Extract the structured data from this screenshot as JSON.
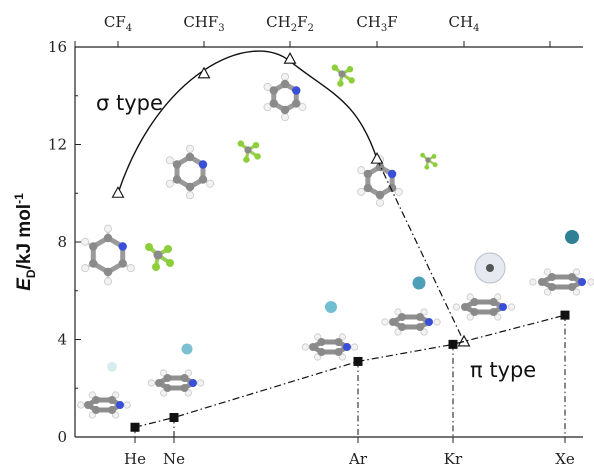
{
  "chart_data": {
    "type": "line",
    "ylabel": {
      "main": "E",
      "sub": "D",
      "unit": "/kJ mol",
      "sup": "-1"
    },
    "ylim": [
      0,
      16
    ],
    "yticks": [
      "0",
      "4",
      "8",
      "12",
      "16"
    ],
    "bottom_axis": {
      "categories": [
        "He",
        "Ne",
        "Ar",
        "Kr",
        "Xe"
      ]
    },
    "top_axis": {
      "categories": [
        "CF4",
        "CHF3",
        "CH2F2",
        "CH3F",
        "CH4"
      ],
      "labels": [
        {
          "base": "CF",
          "sub": "4",
          "tail": "",
          "sub2": ""
        },
        {
          "base": "CHF",
          "sub": "3",
          "tail": "",
          "sub2": ""
        },
        {
          "base": "CH",
          "sub": "2",
          "tail": "F",
          "sub2": "2"
        },
        {
          "base": "CH",
          "sub": "3",
          "tail": "F",
          "sub2": ""
        },
        {
          "base": "CH",
          "sub": "4",
          "tail": "",
          "sub2": ""
        }
      ]
    },
    "series": [
      {
        "name": "σ type",
        "axis": "top",
        "marker": "open-triangle",
        "x": [
          "CF4",
          "CHF3",
          "CH2F2",
          "CH3F",
          "CH4"
        ],
        "y": [
          10.0,
          14.9,
          15.5,
          11.4,
          3.9
        ]
      },
      {
        "name": "π type",
        "axis": "bottom",
        "marker": "filled-square",
        "x": [
          "He",
          "Ne",
          "Ar",
          "Kr",
          "Xe"
        ],
        "y": [
          0.4,
          0.8,
          3.1,
          3.8,
          5.0
        ]
      }
    ],
    "grid": false
  },
  "colors": {
    "axis": "#222222",
    "line": "#111111",
    "carbon": "#8a8a8a",
    "nitrogen": "#3a4fd8",
    "hydrogen": "#f2f2f2",
    "fluorine": "#8ccf3a",
    "helium": "#d6eef0",
    "neon": "#7bbfd1",
    "argon": "#70c0d2",
    "krypton": "#4c9fb6",
    "xenon": "#2f7f95"
  },
  "icons": [
    "pyridine-molecule",
    "freon-molecule",
    "rare-gas-atom",
    "methane-cage"
  ]
}
